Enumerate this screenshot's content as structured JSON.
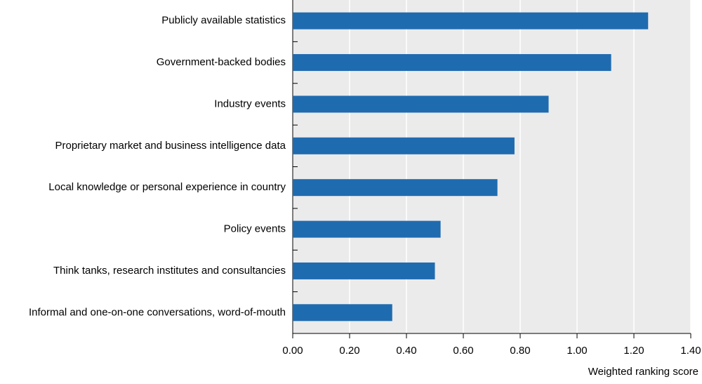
{
  "chart_data": {
    "type": "bar",
    "orientation": "horizontal",
    "categories": [
      "Publicly available statistics",
      "Government-backed bodies",
      "Industry events",
      "Proprietary market and business intelligence data",
      "Local knowledge or personal experience in country",
      "Policy events",
      "Think tanks, research institutes and consultancies",
      "Informal and one-on-one conversations, word-of-mouth"
    ],
    "values": [
      1.25,
      1.12,
      0.9,
      0.78,
      0.72,
      0.52,
      0.5,
      0.35
    ],
    "color": "#1f6bb0",
    "x_label": "Weighted ranking score",
    "xlim": [
      0,
      1.4
    ],
    "xticks": [
      {
        "value": 0,
        "label": "0.00"
      },
      {
        "value": 0.2,
        "label": "0.20"
      },
      {
        "value": 0.4,
        "label": "0.40"
      },
      {
        "value": 0.6,
        "label": "0.60"
      },
      {
        "value": 0.8,
        "label": "0.80"
      },
      {
        "value": 1.0,
        "label": "1.00"
      },
      {
        "value": 1.2,
        "label": "1.20"
      },
      {
        "value": 1.4,
        "label": "1.40"
      }
    ],
    "grid": true
  }
}
